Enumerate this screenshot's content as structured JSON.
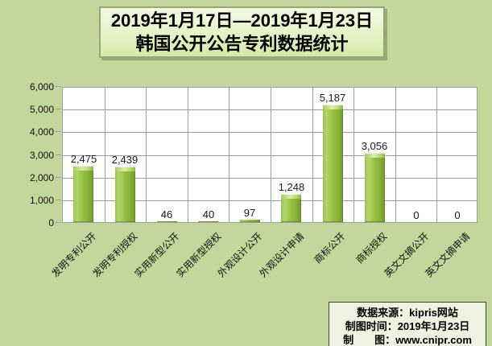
{
  "page": {
    "background": "#c3d69b"
  },
  "title": {
    "line1": "2019年1月17日—2019年1月23日",
    "line2": "韩国公开公告专利数据统计"
  },
  "chart_data": {
    "type": "bar",
    "title": "2019年1月17日—2019年1月23日 韩国公开公告专利数据统计",
    "xlabel": "",
    "ylabel": "",
    "categories": [
      "发明专利公开",
      "发明专利授权",
      "实用新型公开",
      "实用新型授权",
      "外观设计公开",
      "外观设计申请",
      "商标公开",
      "商标授权",
      "英文文摘公开",
      "英文文摘申请"
    ],
    "values": [
      2475,
      2439,
      46,
      40,
      97,
      1248,
      5187,
      3056,
      0,
      0
    ],
    "value_labels": [
      "2,475",
      "2,439",
      "46",
      "40",
      "97",
      "1,248",
      "5,187",
      "3,056",
      "0",
      "0"
    ],
    "ylim": [
      0,
      6000
    ],
    "y_tick_step": 1000,
    "y_tick_labels": [
      "0",
      "1,000",
      "2,000",
      "3,000",
      "4,000",
      "5,000",
      "6,000"
    ],
    "grid": true,
    "legend_position": "none",
    "bar_color": "#96c043",
    "plot_background": "#ffffff",
    "gridline_color": "#98a0a0"
  },
  "footer": {
    "lines": [
      "数据来源：kipris网站",
      "制图时间：2019年1月23日",
      "制　　图：www.cnipr.com"
    ]
  }
}
